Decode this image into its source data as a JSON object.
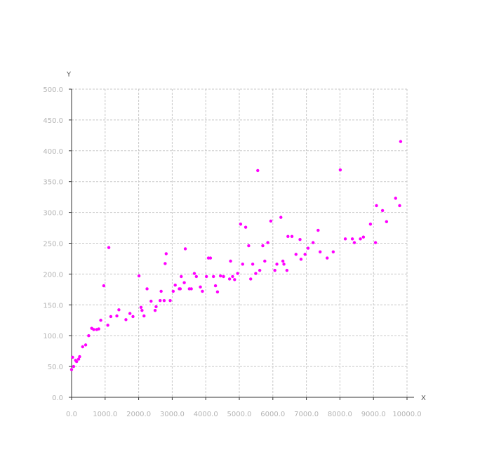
{
  "chart_data": {
    "type": "scatter",
    "xlabel": "X",
    "ylabel": "Y",
    "xlim": [
      0,
      10000
    ],
    "ylim": [
      0,
      500
    ],
    "x_ticks": [
      0,
      1000,
      2000,
      3000,
      4000,
      5000,
      6000,
      7000,
      8000,
      9000,
      10000
    ],
    "y_ticks": [
      0,
      50,
      100,
      150,
      200,
      250,
      300,
      350,
      400,
      450,
      500
    ],
    "x_tick_labels": [
      "0.0",
      "1000.0",
      "2000.0",
      "3000.0",
      "4000.0",
      "5000.0",
      "6000.0",
      "7000.0",
      "8000.0",
      "9000.0",
      "10000.0"
    ],
    "y_tick_labels": [
      "0.0",
      "50.0",
      "100.0",
      "150.0",
      "200.0",
      "250.0",
      "300.0",
      "350.0",
      "400.0",
      "450.0",
      "500.0"
    ],
    "grid": true,
    "marker_color": "#ff00ff",
    "points": [
      [
        0,
        45
      ],
      [
        30,
        65
      ],
      [
        60,
        50
      ],
      [
        120,
        60
      ],
      [
        150,
        58
      ],
      [
        210,
        62
      ],
      [
        240,
        66
      ],
      [
        330,
        82
      ],
      [
        420,
        85
      ],
      [
        510,
        100
      ],
      [
        600,
        112
      ],
      [
        660,
        110
      ],
      [
        750,
        110
      ],
      [
        810,
        111
      ],
      [
        870,
        125
      ],
      [
        960,
        181
      ],
      [
        1080,
        117
      ],
      [
        1110,
        243
      ],
      [
        1170,
        131
      ],
      [
        1350,
        132
      ],
      [
        1410,
        142
      ],
      [
        1620,
        126
      ],
      [
        1740,
        136
      ],
      [
        1830,
        131
      ],
      [
        2010,
        197
      ],
      [
        2070,
        146
      ],
      [
        2100,
        141
      ],
      [
        2160,
        132
      ],
      [
        2250,
        176
      ],
      [
        2370,
        156
      ],
      [
        2490,
        141
      ],
      [
        2520,
        147
      ],
      [
        2640,
        157
      ],
      [
        2670,
        172
      ],
      [
        2760,
        157
      ],
      [
        2790,
        217
      ],
      [
        2820,
        233
      ],
      [
        2940,
        157
      ],
      [
        3030,
        172
      ],
      [
        3090,
        182
      ],
      [
        3210,
        176
      ],
      [
        3240,
        176
      ],
      [
        3270,
        196
      ],
      [
        3360,
        186
      ],
      [
        3390,
        241
      ],
      [
        3510,
        176
      ],
      [
        3570,
        176
      ],
      [
        3660,
        201
      ],
      [
        3720,
        196
      ],
      [
        3840,
        179
      ],
      [
        3900,
        172
      ],
      [
        4020,
        196
      ],
      [
        4080,
        226
      ],
      [
        4140,
        226
      ],
      [
        4230,
        196
      ],
      [
        4290,
        181
      ],
      [
        4350,
        171
      ],
      [
        4440,
        197
      ],
      [
        4530,
        196
      ],
      [
        4710,
        192
      ],
      [
        4740,
        221
      ],
      [
        4800,
        196
      ],
      [
        4860,
        191
      ],
      [
        4950,
        201
      ],
      [
        5040,
        281
      ],
      [
        5100,
        216
      ],
      [
        5190,
        276
      ],
      [
        5280,
        246
      ],
      [
        5340,
        192
      ],
      [
        5400,
        216
      ],
      [
        5490,
        201
      ],
      [
        5550,
        368
      ],
      [
        5610,
        206
      ],
      [
        5700,
        246
      ],
      [
        5760,
        221
      ],
      [
        5850,
        251
      ],
      [
        5940,
        286
      ],
      [
        6060,
        206
      ],
      [
        6120,
        216
      ],
      [
        6240,
        292
      ],
      [
        6300,
        221
      ],
      [
        6330,
        216
      ],
      [
        6420,
        206
      ],
      [
        6450,
        261
      ],
      [
        6570,
        261
      ],
      [
        6690,
        232
      ],
      [
        6810,
        256
      ],
      [
        6840,
        224
      ],
      [
        6960,
        232
      ],
      [
        7050,
        242
      ],
      [
        7200,
        251
      ],
      [
        7350,
        271
      ],
      [
        7410,
        236
      ],
      [
        7620,
        226
      ],
      [
        7800,
        236
      ],
      [
        8010,
        369
      ],
      [
        8160,
        257
      ],
      [
        8370,
        257
      ],
      [
        8430,
        251
      ],
      [
        8610,
        257
      ],
      [
        8700,
        260
      ],
      [
        8910,
        281
      ],
      [
        9060,
        251
      ],
      [
        9090,
        311
      ],
      [
        9270,
        303
      ],
      [
        9390,
        285
      ],
      [
        9660,
        323
      ],
      [
        9780,
        311
      ],
      [
        9810,
        415
      ]
    ]
  }
}
